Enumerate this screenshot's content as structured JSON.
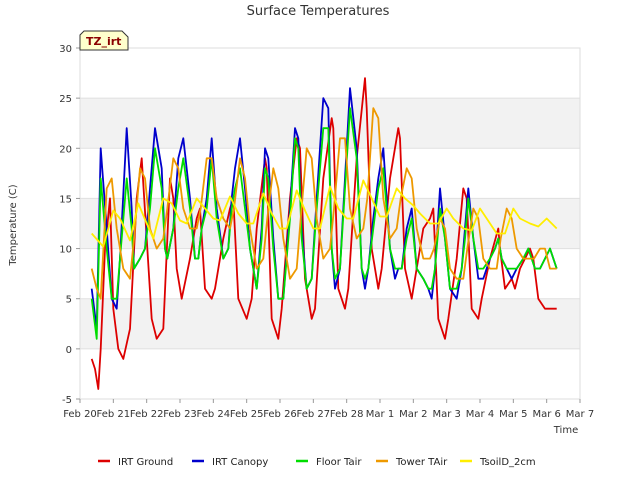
{
  "chart_data": {
    "type": "line",
    "title": "Surface Temperatures",
    "xlabel": "Time",
    "ylabel": "Temperature (C)",
    "badge": "TZ_irt",
    "ylim": [
      -5,
      30
    ],
    "yticks": [
      -5,
      0,
      5,
      10,
      15,
      20,
      25,
      30
    ],
    "xlim": [
      0,
      15
    ],
    "xticks": [
      {
        "x": 0,
        "label": "Feb 20"
      },
      {
        "x": 1,
        "label": "Feb 21"
      },
      {
        "x": 2,
        "label": "Feb 22"
      },
      {
        "x": 3,
        "label": "Feb 23"
      },
      {
        "x": 4,
        "label": "Feb 24"
      },
      {
        "x": 5,
        "label": "Feb 25"
      },
      {
        "x": 6,
        "label": "Feb 26"
      },
      {
        "x": 7,
        "label": "Feb 27"
      },
      {
        "x": 8,
        "label": "Feb 28"
      },
      {
        "x": 9,
        "label": "Mar 1"
      },
      {
        "x": 10,
        "label": "Mar 2"
      },
      {
        "x": 11,
        "label": "Mar 3"
      },
      {
        "x": 12,
        "label": "Mar 4"
      },
      {
        "x": 13,
        "label": "Mar 5"
      },
      {
        "x": 14,
        "label": "Mar 6"
      },
      {
        "x": 15,
        "label": "Mar 7"
      }
    ],
    "grid": "horizontal bands",
    "legend_position": "bottom",
    "series": [
      {
        "name": "IRT Ground",
        "color": "#dd0000",
        "x": [
          0.35,
          0.45,
          0.55,
          0.62,
          0.75,
          0.9,
          1.0,
          1.15,
          1.3,
          1.5,
          1.7,
          1.85,
          2.0,
          2.15,
          2.3,
          2.5,
          2.7,
          2.8,
          2.9,
          3.05,
          3.3,
          3.5,
          3.6,
          3.75,
          3.95,
          4.05,
          4.3,
          4.5,
          4.6,
          4.75,
          5.0,
          5.15,
          5.3,
          5.55,
          5.6,
          5.75,
          5.95,
          6.05,
          6.3,
          6.5,
          6.6,
          6.75,
          6.95,
          7.05,
          7.3,
          7.55,
          7.6,
          7.75,
          7.95,
          8.05,
          8.3,
          8.55,
          8.6,
          8.75,
          8.95,
          9.05,
          9.3,
          9.55,
          9.6,
          9.75,
          9.95,
          10.05,
          10.3,
          10.5,
          10.6,
          10.75,
          10.95,
          11.05,
          11.3,
          11.5,
          11.6,
          11.75,
          11.95,
          12.05,
          12.3,
          12.55,
          12.6,
          12.75,
          12.95,
          13.05,
          13.2,
          13.5,
          13.6,
          13.75,
          13.95,
          14.05,
          14.2,
          14.3
        ],
        "y": [
          -1,
          -2,
          -4,
          0,
          10,
          15,
          4,
          0,
          -1,
          2,
          15,
          19,
          11,
          3,
          1,
          2,
          17,
          15,
          8,
          5,
          9,
          13,
          14,
          6,
          5,
          6,
          11,
          14,
          15,
          5,
          3,
          5,
          12,
          19,
          18,
          3,
          1,
          4,
          15,
          21,
          20,
          7,
          3,
          4,
          17,
          23,
          22,
          6,
          4,
          6,
          19,
          27,
          24,
          10,
          6,
          8,
          17,
          22,
          21,
          8,
          5,
          7,
          12,
          13,
          14,
          3,
          1,
          3,
          9,
          16,
          15,
          4,
          3,
          5,
          9,
          12,
          10,
          6,
          7,
          6,
          8,
          10,
          9,
          5,
          4,
          4,
          4,
          4
        ]
      },
      {
        "name": "IRT Canopy",
        "color": "#0000cc",
        "x": [
          0.35,
          0.5,
          0.62,
          0.8,
          0.95,
          1.1,
          1.2,
          1.4,
          1.55,
          1.62,
          1.8,
          1.95,
          2.1,
          2.25,
          2.45,
          2.55,
          2.62,
          2.8,
          2.95,
          3.1,
          3.3,
          3.45,
          3.55,
          3.65,
          3.8,
          3.95,
          4.1,
          4.3,
          4.45,
          4.55,
          4.65,
          4.8,
          4.95,
          5.1,
          5.3,
          5.45,
          5.55,
          5.65,
          5.8,
          5.95,
          6.1,
          6.3,
          6.45,
          6.55,
          6.65,
          6.8,
          6.95,
          7.1,
          7.3,
          7.45,
          7.55,
          7.65,
          7.8,
          7.95,
          8.1,
          8.3,
          8.45,
          8.55,
          8.65,
          8.8,
          8.95,
          9.1,
          9.3,
          9.45,
          9.55,
          9.65,
          9.8,
          9.95,
          10.1,
          10.3,
          10.45,
          10.55,
          10.65,
          10.8,
          10.95,
          11.1,
          11.3,
          11.45,
          11.55,
          11.65,
          11.8,
          11.95,
          12.1,
          12.3,
          12.45,
          12.55,
          12.65,
          12.8,
          12.95,
          13.1,
          13.3,
          13.45,
          13.55,
          13.65,
          13.8,
          13.95,
          14.1,
          14.3
        ],
        "y": [
          6,
          2,
          20,
          12,
          5,
          4,
          9,
          22,
          14,
          8,
          9,
          10,
          16,
          22,
          18,
          10,
          9,
          12,
          19,
          21,
          15,
          9,
          9,
          12,
          15,
          21,
          14,
          9,
          10,
          15,
          18,
          21,
          16,
          10,
          6,
          12,
          20,
          19,
          11,
          5,
          5,
          14,
          22,
          21,
          12,
          6,
          7,
          15,
          25,
          24,
          10,
          6,
          8,
          17,
          26,
          20,
          8,
          6,
          8,
          13,
          17,
          20,
          10,
          7,
          8,
          8,
          12,
          14,
          8,
          7,
          6,
          5,
          8,
          16,
          11,
          6,
          5,
          8,
          12,
          16,
          11,
          7,
          7,
          9,
          10,
          11,
          9,
          8,
          7,
          8,
          9,
          10,
          9,
          8,
          8,
          9,
          10,
          8
        ]
      },
      {
        "name": "Floor Tair",
        "color": "#00dd00",
        "x": [
          0.35,
          0.5,
          0.62,
          0.8,
          0.95,
          1.1,
          1.2,
          1.4,
          1.55,
          1.62,
          1.8,
          1.95,
          2.1,
          2.25,
          2.45,
          2.55,
          2.62,
          2.8,
          2.95,
          3.1,
          3.3,
          3.45,
          3.55,
          3.65,
          3.8,
          3.95,
          4.1,
          4.3,
          4.45,
          4.55,
          4.65,
          4.8,
          4.95,
          5.1,
          5.3,
          5.45,
          5.55,
          5.65,
          5.8,
          5.95,
          6.1,
          6.3,
          6.45,
          6.55,
          6.65,
          6.8,
          6.95,
          7.1,
          7.3,
          7.45,
          7.55,
          7.65,
          7.8,
          7.95,
          8.1,
          8.3,
          8.45,
          8.55,
          8.65,
          8.8,
          8.95,
          9.1,
          9.3,
          9.45,
          9.55,
          9.65,
          9.8,
          9.95,
          10.1,
          10.3,
          10.45,
          10.55,
          10.65,
          10.8,
          10.95,
          11.1,
          11.3,
          11.45,
          11.55,
          11.65,
          11.8,
          11.95,
          12.1,
          12.3,
          12.45,
          12.55,
          12.65,
          12.8,
          12.95,
          13.1,
          13.3,
          13.45,
          13.55,
          13.65,
          13.8,
          13.95,
          14.1,
          14.3
        ],
        "y": [
          5,
          1,
          17,
          10,
          5,
          5,
          9,
          17,
          12,
          8,
          9,
          10,
          14,
          20,
          16,
          10,
          9,
          12,
          16,
          19,
          14,
          9,
          9,
          12,
          14,
          19,
          13,
          9,
          10,
          14,
          16,
          18,
          14,
          10,
          6,
          11,
          18,
          17,
          10,
          5,
          5,
          13,
          21,
          20,
          11,
          6,
          7,
          14,
          22,
          22,
          10,
          7,
          8,
          16,
          24,
          19,
          8,
          7,
          8,
          12,
          16,
          18,
          10,
          8,
          8,
          8,
          11,
          13,
          8,
          7,
          6,
          6,
          8,
          14,
          11,
          6,
          6,
          8,
          11,
          15,
          11,
          8,
          8,
          9,
          10,
          11,
          9,
          8,
          8,
          8,
          9,
          10,
          9,
          8,
          8,
          9,
          10,
          8
        ]
      },
      {
        "name": "Tower TAir",
        "color": "#ee9900",
        "x": [
          0.35,
          0.5,
          0.62,
          0.8,
          0.95,
          1.1,
          1.3,
          1.5,
          1.62,
          1.8,
          1.95,
          2.1,
          2.3,
          2.5,
          2.62,
          2.8,
          2.95,
          3.1,
          3.3,
          3.5,
          3.62,
          3.8,
          3.95,
          4.1,
          4.3,
          4.5,
          4.62,
          4.8,
          4.95,
          5.1,
          5.3,
          5.5,
          5.62,
          5.8,
          5.95,
          6.1,
          6.3,
          6.5,
          6.62,
          6.8,
          6.95,
          7.1,
          7.3,
          7.5,
          7.62,
          7.8,
          7.95,
          8.1,
          8.3,
          8.5,
          8.62,
          8.8,
          8.95,
          9.1,
          9.3,
          9.5,
          9.62,
          9.8,
          9.95,
          10.1,
          10.3,
          10.5,
          10.62,
          10.8,
          10.95,
          11.1,
          11.3,
          11.5,
          11.62,
          11.8,
          11.95,
          12.1,
          12.3,
          12.5,
          12.62,
          12.8,
          12.95,
          13.1,
          13.3,
          13.5,
          13.62,
          13.8,
          13.95,
          14.1,
          14.3
        ],
        "y": [
          8,
          6,
          5,
          16,
          17,
          12,
          8,
          7,
          11,
          18,
          17,
          12,
          10,
          11,
          14,
          19,
          18,
          14,
          12,
          12,
          14,
          19,
          19,
          15,
          13,
          12,
          14,
          19,
          17,
          12,
          8,
          9,
          13,
          18,
          16,
          11,
          7,
          8,
          13,
          20,
          19,
          13,
          9,
          10,
          14,
          21,
          21,
          14,
          11,
          12,
          15,
          24,
          23,
          15,
          11,
          12,
          15,
          18,
          17,
          12,
          9,
          9,
          10,
          13,
          12,
          8,
          7,
          7,
          10,
          14,
          13,
          9,
          8,
          8,
          11,
          14,
          13,
          10,
          9,
          9,
          9,
          10,
          10,
          8,
          8
        ]
      },
      {
        "name": "TsoilD_2cm",
        "color": "#ffee00",
        "x": [
          0.35,
          0.7,
          1.0,
          1.2,
          1.5,
          1.75,
          2.0,
          2.2,
          2.5,
          2.75,
          3.0,
          3.2,
          3.5,
          3.75,
          4.0,
          4.2,
          4.5,
          4.75,
          5.0,
          5.2,
          5.5,
          5.75,
          6.0,
          6.2,
          6.5,
          6.75,
          7.0,
          7.2,
          7.5,
          7.75,
          8.0,
          8.2,
          8.5,
          8.75,
          9.0,
          9.2,
          9.5,
          9.75,
          10.0,
          10.2,
          10.5,
          10.75,
          11.0,
          11.2,
          11.5,
          11.75,
          12.0,
          12.2,
          12.5,
          12.75,
          13.0,
          13.2,
          13.5,
          13.75,
          14.0,
          14.3
        ],
        "y": [
          11.5,
          10.2,
          13.8,
          13,
          10.8,
          14.5,
          12.5,
          11,
          15,
          14.5,
          12.8,
          12.5,
          15,
          14,
          13,
          12.8,
          15.2,
          13.5,
          12.5,
          12.5,
          15.5,
          13.5,
          12,
          12,
          15.8,
          13.8,
          12,
          12,
          16.2,
          14,
          13,
          13,
          16.8,
          15,
          13.2,
          13.2,
          16,
          15,
          14.3,
          13.5,
          12.5,
          12.5,
          14,
          13,
          12,
          11.8,
          14,
          13,
          11.5,
          11.5,
          14,
          13,
          12.5,
          12.2,
          13,
          12
        ]
      }
    ]
  }
}
